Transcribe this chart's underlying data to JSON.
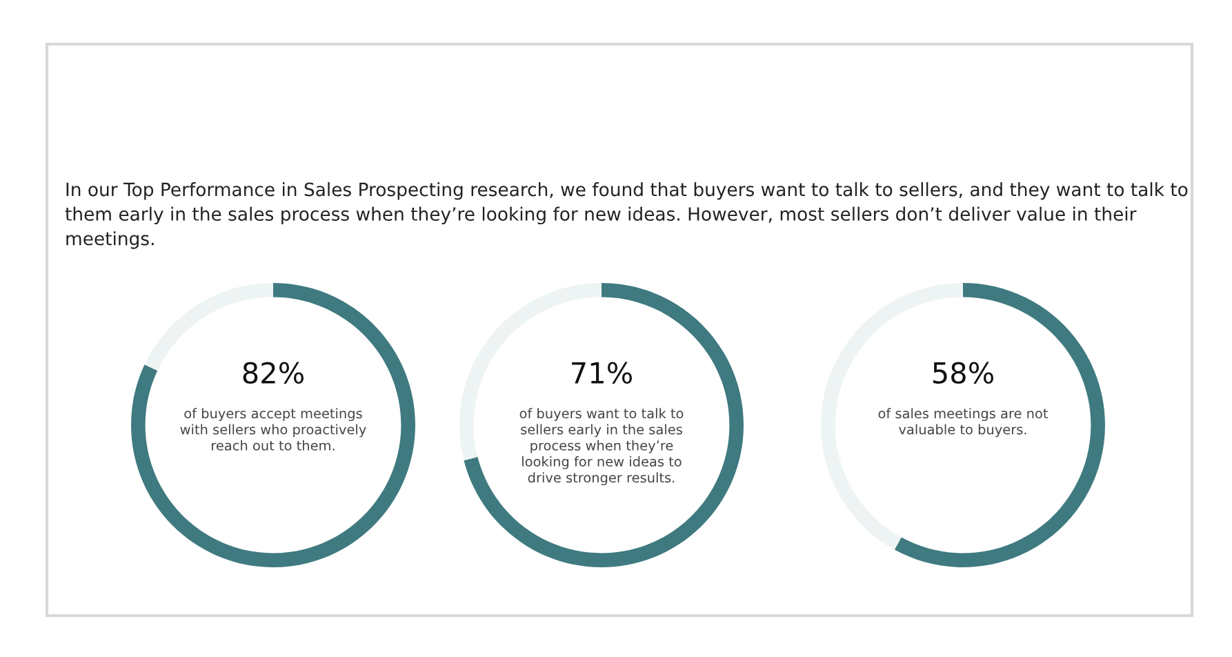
{
  "chart_data": [
    {
      "type": "other",
      "title": "In our Top Performance in Sales Prospecting research, we found that buyers want to talk to sellers, and they want to talk to them early in the sales process when they’re looking for new ideas. However, most sellers don’t deliver value in their meetings."
    },
    {
      "type": "donut",
      "title": "82%",
      "categories": [
        null,
        null
      ],
      "values": [
        82,
        18
      ],
      "colors": [
        "#3f7a80",
        "#eef4f4"
      ],
      "annotations": [
        "of buyers accept meetings\nwith sellers who proactively\nreach out to them."
      ]
    },
    {
      "type": "donut",
      "title": "71%",
      "categories": [
        null,
        null
      ],
      "values": [
        71,
        29
      ],
      "colors": [
        "#3f7a80",
        "#eef4f4"
      ],
      "annotations": [
        "of buyers want to talk to\nsellers early in the sales\nprocess when they’re\nlooking for new ideas to\ndrive stronger results."
      ]
    },
    {
      "type": "donut",
      "title": "58%",
      "categories": [
        null,
        null
      ],
      "values": [
        58,
        42
      ],
      "colors": [
        "#3f7a80",
        "#eef4f4"
      ],
      "annotations": [
        "of sales meetings are not\nvaluable to buyers."
      ]
    }
  ]
}
